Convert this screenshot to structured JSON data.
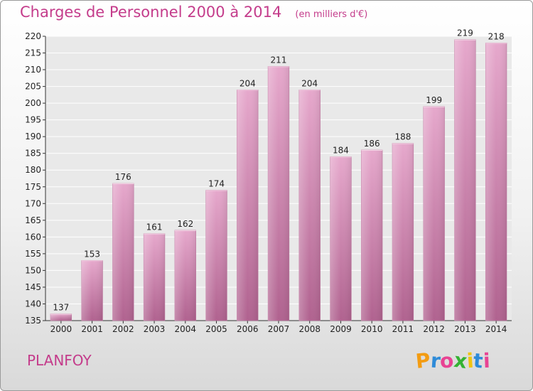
{
  "chart_data": {
    "type": "bar",
    "title": "Charges de Personnel 2000 à 2014",
    "unit": "(en milliers d'€)",
    "categories": [
      "2000",
      "2001",
      "2002",
      "2003",
      "2004",
      "2005",
      "2006",
      "2007",
      "2008",
      "2009",
      "2010",
      "2011",
      "2012",
      "2013",
      "2014"
    ],
    "values": [
      137,
      153,
      176,
      161,
      162,
      174,
      204,
      211,
      204,
      184,
      186,
      188,
      199,
      219,
      218
    ],
    "ylim": [
      135,
      220
    ],
    "yticks": [
      135,
      140,
      145,
      150,
      155,
      160,
      165,
      170,
      175,
      180,
      185,
      190,
      195,
      200,
      205,
      210,
      215,
      220
    ],
    "grid": true,
    "bar_color": "#d87aab"
  },
  "footer": {
    "commune": "PLANFOY",
    "logo": {
      "letters": [
        "P",
        "r",
        "o",
        "x",
        "i",
        "t",
        "i"
      ],
      "colors": [
        "#f39c12",
        "#2e8bd8",
        "#e84393",
        "#34b233",
        "#f1c40f",
        "#2e8bd8",
        "#e84393"
      ]
    }
  }
}
